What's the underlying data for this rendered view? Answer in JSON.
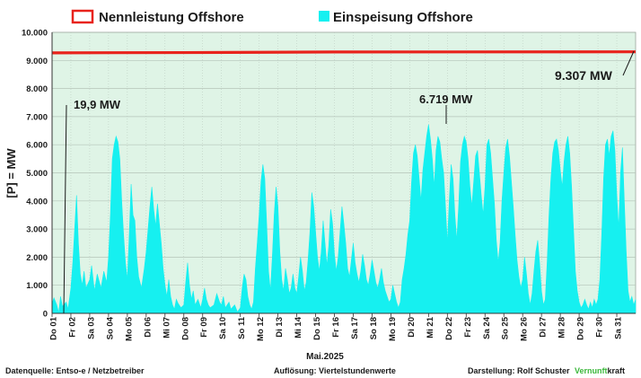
{
  "chart_data": {
    "type": "area",
    "title": "",
    "xlabel": "Mai.2025",
    "ylabel": "[P] = MW",
    "ylim": [
      0,
      10000
    ],
    "yticks": [
      0,
      1000,
      2000,
      3000,
      4000,
      5000,
      6000,
      7000,
      8000,
      9000,
      10000
    ],
    "ytick_labels": [
      "0",
      "1.000",
      "2.000",
      "3.000",
      "4.000",
      "5.000",
      "6.000",
      "7.000",
      "8.000",
      "9.000",
      "10.000"
    ],
    "grid": true,
    "legend_position": "top",
    "categories": [
      "Do 01",
      "Fr 02",
      "Sa 03",
      "So 04",
      "Mo 05",
      "Di 06",
      "Mi 07",
      "Do 08",
      "Fr 09",
      "Sa 10",
      "So 11",
      "Mo 12",
      "Di 13",
      "Mi 14",
      "Do 15",
      "Fr 16",
      "Sa 17",
      "So 18",
      "Mo 19",
      "Di 20",
      "Mi 21",
      "Do 22",
      "Fr 23",
      "Sa 24",
      "So 25",
      "Mo 26",
      "Di 27",
      "Mi 28",
      "Do 29",
      "Fr 30",
      "Sa 31"
    ],
    "colors": {
      "capacity": "#e8231c",
      "feed_in": "#16f0f0",
      "plot_bg": "#dff4e6",
      "grid": "#b5c4b9",
      "brand_accent": "#3cb83c"
    },
    "series": [
      {
        "name": "Nennleistung Offshore",
        "type": "line",
        "points": [
          [
            0,
            9270
          ],
          [
            7,
            9280
          ],
          [
            11,
            9290
          ],
          [
            15,
            9300
          ],
          [
            31,
            9307
          ]
        ]
      },
      {
        "name": "Einspeisung Offshore",
        "type": "area",
        "points": [
          [
            0,
            350
          ],
          [
            0.1,
            550
          ],
          [
            0.25,
            300
          ],
          [
            0.35,
            20
          ],
          [
            0.45,
            600
          ],
          [
            0.55,
            250
          ],
          [
            0.75,
            400
          ],
          [
            0.85,
            150
          ],
          [
            1,
            900
          ],
          [
            1.1,
            1800
          ],
          [
            1.2,
            3000
          ],
          [
            1.3,
            4200
          ],
          [
            1.4,
            2500
          ],
          [
            1.5,
            1400
          ],
          [
            1.6,
            1000
          ],
          [
            1.7,
            1500
          ],
          [
            1.8,
            900
          ],
          [
            2,
            1200
          ],
          [
            2.1,
            1700
          ],
          [
            2.25,
            800
          ],
          [
            2.4,
            1400
          ],
          [
            2.6,
            900
          ],
          [
            2.75,
            1500
          ],
          [
            2.9,
            1100
          ],
          [
            3,
            2000
          ],
          [
            3.1,
            3500
          ],
          [
            3.2,
            5500
          ],
          [
            3.3,
            6000
          ],
          [
            3.4,
            6300
          ],
          [
            3.5,
            6100
          ],
          [
            3.6,
            5500
          ],
          [
            3.7,
            4000
          ],
          [
            3.8,
            2800
          ],
          [
            3.9,
            1800
          ],
          [
            4,
            1200
          ],
          [
            4.1,
            2800
          ],
          [
            4.2,
            4600
          ],
          [
            4.3,
            3500
          ],
          [
            4.4,
            3300
          ],
          [
            4.5,
            2000
          ],
          [
            4.6,
            1300
          ],
          [
            4.75,
            900
          ],
          [
            4.9,
            1600
          ],
          [
            5,
            2200
          ],
          [
            5.1,
            3000
          ],
          [
            5.2,
            3800
          ],
          [
            5.3,
            4500
          ],
          [
            5.4,
            3700
          ],
          [
            5.5,
            3100
          ],
          [
            5.6,
            3900
          ],
          [
            5.7,
            3200
          ],
          [
            5.8,
            2500
          ],
          [
            5.9,
            1600
          ],
          [
            6,
            1000
          ],
          [
            6.1,
            600
          ],
          [
            6.2,
            1200
          ],
          [
            6.3,
            600
          ],
          [
            6.4,
            300
          ],
          [
            6.5,
            150
          ],
          [
            6.6,
            500
          ],
          [
            6.7,
            350
          ],
          [
            6.85,
            200
          ],
          [
            7,
            300
          ],
          [
            7.1,
            1100
          ],
          [
            7.2,
            1800
          ],
          [
            7.3,
            1000
          ],
          [
            7.4,
            500
          ],
          [
            7.5,
            800
          ],
          [
            7.6,
            300
          ],
          [
            7.75,
            500
          ],
          [
            7.9,
            200
          ],
          [
            8,
            500
          ],
          [
            8.1,
            900
          ],
          [
            8.2,
            500
          ],
          [
            8.3,
            300
          ],
          [
            8.4,
            200
          ],
          [
            8.6,
            300
          ],
          [
            8.75,
            700
          ],
          [
            8.9,
            400
          ],
          [
            9,
            300
          ],
          [
            9.1,
            600
          ],
          [
            9.2,
            200
          ],
          [
            9.4,
            400
          ],
          [
            9.5,
            150
          ],
          [
            9.7,
            300
          ],
          [
            9.85,
            50
          ],
          [
            10,
            200
          ],
          [
            10.1,
            900
          ],
          [
            10.2,
            1400
          ],
          [
            10.3,
            1200
          ],
          [
            10.4,
            600
          ],
          [
            10.5,
            300
          ],
          [
            10.6,
            150
          ],
          [
            10.7,
            400
          ],
          [
            10.8,
            1600
          ],
          [
            10.9,
            2500
          ],
          [
            11,
            3500
          ],
          [
            11.1,
            4700
          ],
          [
            11.2,
            5300
          ],
          [
            11.3,
            4800
          ],
          [
            11.4,
            3200
          ],
          [
            11.5,
            1500
          ],
          [
            11.6,
            800
          ],
          [
            11.7,
            2000
          ],
          [
            11.8,
            3500
          ],
          [
            11.9,
            4500
          ],
          [
            12,
            3800
          ],
          [
            12.1,
            2200
          ],
          [
            12.2,
            1200
          ],
          [
            12.3,
            800
          ],
          [
            12.4,
            1600
          ],
          [
            12.5,
            1200
          ],
          [
            12.6,
            700
          ],
          [
            12.7,
            900
          ],
          [
            12.8,
            1400
          ],
          [
            12.9,
            900
          ],
          [
            13,
            700
          ],
          [
            13.1,
            1300
          ],
          [
            13.2,
            2000
          ],
          [
            13.3,
            1500
          ],
          [
            13.4,
            800
          ],
          [
            13.5,
            1100
          ],
          [
            13.6,
            1900
          ],
          [
            13.7,
            2900
          ],
          [
            13.8,
            4300
          ],
          [
            13.9,
            3800
          ],
          [
            14,
            2900
          ],
          [
            14.1,
            2000
          ],
          [
            14.2,
            1500
          ],
          [
            14.3,
            2200
          ],
          [
            14.4,
            3300
          ],
          [
            14.5,
            2500
          ],
          [
            14.6,
            1700
          ],
          [
            14.7,
            2400
          ],
          [
            14.8,
            3700
          ],
          [
            14.9,
            3200
          ],
          [
            15,
            2100
          ],
          [
            15.1,
            1500
          ],
          [
            15.2,
            2000
          ],
          [
            15.3,
            2900
          ],
          [
            15.4,
            3800
          ],
          [
            15.5,
            3200
          ],
          [
            15.6,
            2500
          ],
          [
            15.7,
            1600
          ],
          [
            15.8,
            1300
          ],
          [
            15.9,
            1900
          ],
          [
            16,
            2500
          ],
          [
            16.1,
            1800
          ],
          [
            16.2,
            1400
          ],
          [
            16.3,
            1100
          ],
          [
            16.4,
            1500
          ],
          [
            16.5,
            2100
          ],
          [
            16.6,
            1700
          ],
          [
            16.7,
            1200
          ],
          [
            16.8,
            1000
          ],
          [
            16.9,
            1400
          ],
          [
            17,
            1900
          ],
          [
            17.1,
            1500
          ],
          [
            17.2,
            1100
          ],
          [
            17.3,
            900
          ],
          [
            17.4,
            1200
          ],
          [
            17.5,
            1600
          ],
          [
            17.6,
            1100
          ],
          [
            17.7,
            800
          ],
          [
            17.8,
            600
          ],
          [
            17.9,
            400
          ],
          [
            18,
            500
          ],
          [
            18.1,
            1000
          ],
          [
            18.2,
            700
          ],
          [
            18.3,
            400
          ],
          [
            18.4,
            200
          ],
          [
            18.5,
            400
          ],
          [
            18.6,
            1200
          ],
          [
            18.7,
            1600
          ],
          [
            18.8,
            2100
          ],
          [
            18.9,
            2800
          ],
          [
            19,
            3300
          ],
          [
            19.1,
            4700
          ],
          [
            19.2,
            5700
          ],
          [
            19.3,
            6000
          ],
          [
            19.4,
            5600
          ],
          [
            19.5,
            4800
          ],
          [
            19.6,
            4000
          ],
          [
            19.7,
            5100
          ],
          [
            19.8,
            5700
          ],
          [
            19.9,
            6300
          ],
          [
            20,
            6719
          ],
          [
            20.1,
            6200
          ],
          [
            20.2,
            5500
          ],
          [
            20.3,
            4500
          ],
          [
            20.4,
            5800
          ],
          [
            20.5,
            6300
          ],
          [
            20.6,
            6100
          ],
          [
            20.7,
            5500
          ],
          [
            20.8,
            5000
          ],
          [
            20.9,
            3800
          ],
          [
            21,
            2500
          ],
          [
            21.1,
            4000
          ],
          [
            21.2,
            5300
          ],
          [
            21.3,
            4800
          ],
          [
            21.4,
            3500
          ],
          [
            21.5,
            2600
          ],
          [
            21.6,
            3800
          ],
          [
            21.7,
            5400
          ],
          [
            21.8,
            6000
          ],
          [
            21.9,
            6300
          ],
          [
            22,
            6100
          ],
          [
            22.1,
            5500
          ],
          [
            22.2,
            4500
          ],
          [
            22.3,
            3800
          ],
          [
            22.4,
            4700
          ],
          [
            22.5,
            5600
          ],
          [
            22.6,
            5800
          ],
          [
            22.7,
            5000
          ],
          [
            22.8,
            4200
          ],
          [
            22.9,
            3500
          ],
          [
            23,
            4500
          ],
          [
            23.1,
            6000
          ],
          [
            23.2,
            6200
          ],
          [
            23.3,
            5700
          ],
          [
            23.4,
            4800
          ],
          [
            23.5,
            3900
          ],
          [
            23.6,
            2600
          ],
          [
            23.7,
            1800
          ],
          [
            23.8,
            2500
          ],
          [
            23.9,
            4000
          ],
          [
            24,
            5000
          ],
          [
            24.1,
            5900
          ],
          [
            24.2,
            6200
          ],
          [
            24.3,
            5600
          ],
          [
            24.4,
            4700
          ],
          [
            24.5,
            3800
          ],
          [
            24.6,
            2800
          ],
          [
            24.7,
            1900
          ],
          [
            24.8,
            1300
          ],
          [
            24.9,
            900
          ],
          [
            25,
            1200
          ],
          [
            25.1,
            2000
          ],
          [
            25.2,
            1400
          ],
          [
            25.3,
            700
          ],
          [
            25.4,
            300
          ],
          [
            25.5,
            700
          ],
          [
            25.6,
            1500
          ],
          [
            25.7,
            2200
          ],
          [
            25.8,
            2600
          ],
          [
            25.9,
            1800
          ],
          [
            26,
            800
          ],
          [
            26.1,
            300
          ],
          [
            26.2,
            500
          ],
          [
            26.3,
            1800
          ],
          [
            26.4,
            3500
          ],
          [
            26.5,
            4800
          ],
          [
            26.6,
            5700
          ],
          [
            26.7,
            6100
          ],
          [
            26.8,
            6200
          ],
          [
            26.9,
            5800
          ],
          [
            27,
            5100
          ],
          [
            27.1,
            4500
          ],
          [
            27.2,
            5400
          ],
          [
            27.3,
            6000
          ],
          [
            27.4,
            6300
          ],
          [
            27.5,
            5700
          ],
          [
            27.6,
            4500
          ],
          [
            27.7,
            3000
          ],
          [
            27.8,
            1500
          ],
          [
            27.9,
            800
          ],
          [
            28,
            400
          ],
          [
            28.1,
            200
          ],
          [
            28.2,
            300
          ],
          [
            28.3,
            500
          ],
          [
            28.4,
            300
          ],
          [
            28.5,
            150
          ],
          [
            28.6,
            400
          ],
          [
            28.7,
            200
          ],
          [
            28.8,
            500
          ],
          [
            28.9,
            300
          ],
          [
            29,
            500
          ]
        ]
      }
    ],
    "annotations": [
      {
        "text": "19,9 MW",
        "value": 19.9,
        "x": 0.35
      },
      {
        "text": "6.719 MW",
        "value": 6719,
        "x": 20.0
      },
      {
        "text": "9.307 MW",
        "value": 9307,
        "x": 30.95
      }
    ]
  },
  "footer": {
    "source": "Datenquelle:  Entso-e  / Netzbetreiber",
    "resolution": "Auflösung: Viertelstundenwerte",
    "credit": "Darstellung:  Rolf Schuster",
    "brand_a": "Vernunft",
    "brand_b": "kraft"
  }
}
